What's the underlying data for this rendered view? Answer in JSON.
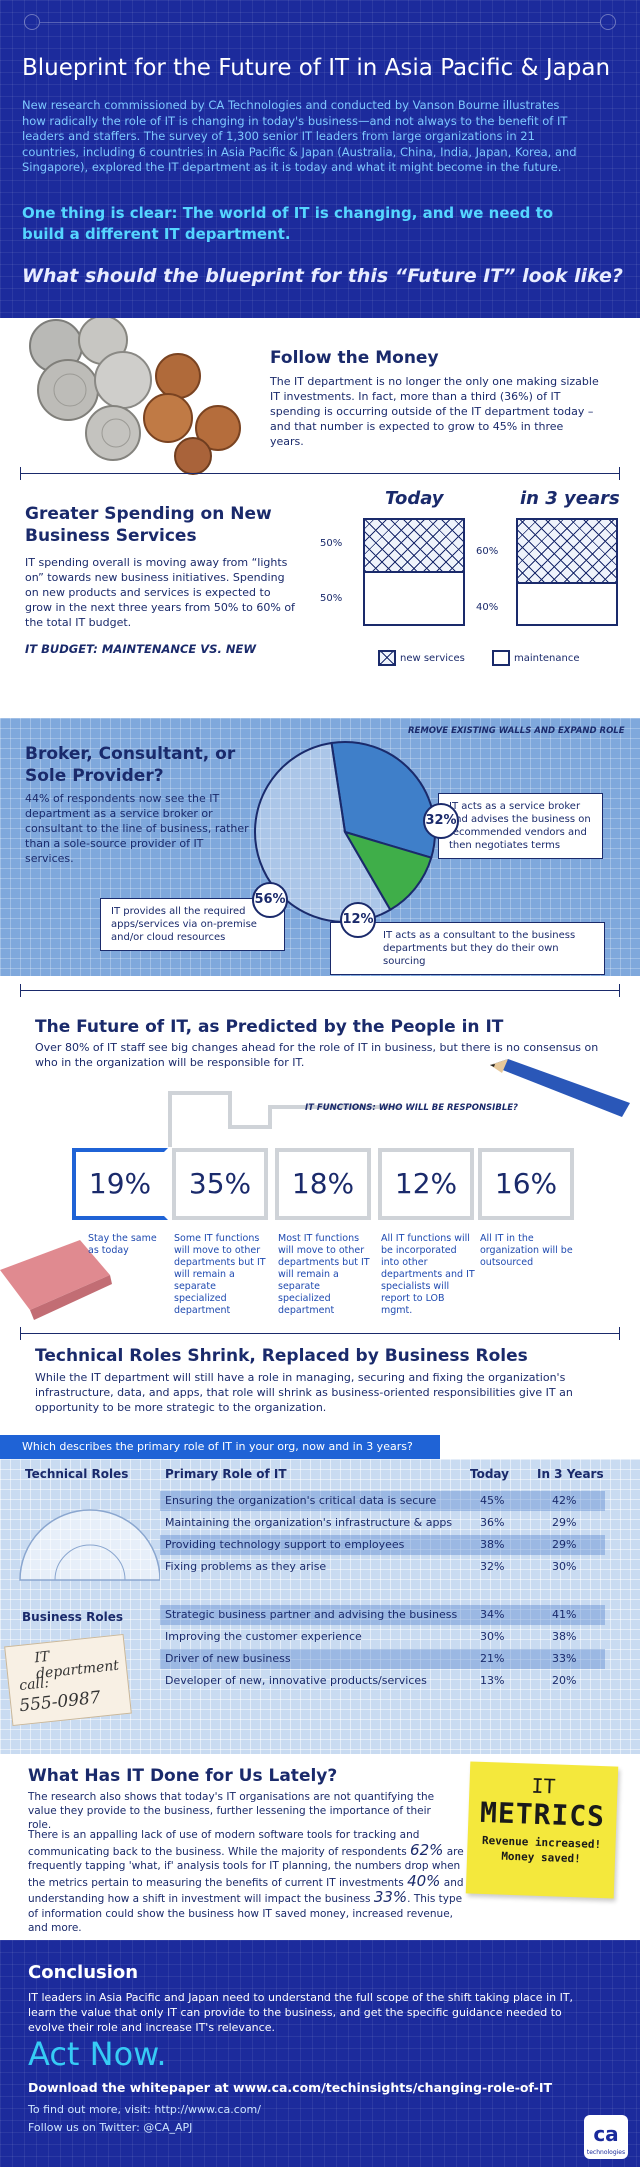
{
  "header": {
    "title": "Blueprint for the Future of IT in Asia Pacific & Japan",
    "intro": "New research commissioned by CA Technologies and conducted by Vanson Bourne illustrates how radically the role of IT is changing in today's business—and not always to the benefit of IT leaders and staffers. The survey of 1,300 senior IT leaders from large organizations in 21 countries, including 6 countries in Asia Pacific & Japan (Australia, China, India, Japan, Korea, and Singapore), explored the IT department as it is today and what it might become in the future.",
    "clear": "One thing is clear: The world of IT is changing, and we need to build a different IT department.",
    "question": "What should the blueprint for this “Future IT” look like?"
  },
  "money": {
    "title": "Follow the Money",
    "body": "The IT department is no longer the only one making sizable IT investments. In fact, more than a third (36%) of IT spending is occurring outside of the IT department today – and that number is expected to grow to 45% in three years."
  },
  "spending": {
    "title": "Greater Spending on New Business Services",
    "body": "IT spending overall is moving away from “lights on” towards new business initiatives. Spending on new products and services is expected to grow in the next three years from 50% to 60% of the total IT budget.",
    "budget_label": "IT BUDGET: MAINTENANCE VS. NEW",
    "today_label": "Today",
    "future_label": "in 3 years",
    "today_new": "50%",
    "today_maint": "50%",
    "future_new": "60%",
    "future_maint": "40%",
    "legend_new": "new services",
    "legend_maint": "maintenance"
  },
  "broker": {
    "title": "Broker, Consultant, or Sole Provider?",
    "body": "44% of respondents now see the IT department as a service broker or consultant to the line of business, rather than a sole-source provider of IT services.",
    "expand_label": "REMOVE EXISTING WALLS AND EXPAND ROLE",
    "pct_broker": "32%",
    "pct_provider": "56%",
    "pct_consultant": "12%",
    "text_broker": "IT acts as a service broker and advises the business on recommended vendors and then negotiates terms",
    "text_provider": "IT provides all the required apps/services via on-premise and/or cloud resources",
    "text_consultant": "IT acts as a consultant to the business departments but they do their own sourcing",
    "colors": {
      "broker": "#3f7fc9",
      "provider": "#ffffff",
      "consultant": "#3fae49"
    }
  },
  "chart_data": {
    "type": "pie",
    "categories": [
      "IT provides all the required apps/services via on-premise and/or cloud resources",
      "IT acts as a service broker and advises the business on recommended vendors and then negotiates terms",
      "IT acts as a consultant to the business departments but they do their own sourcing"
    ],
    "values": [
      56,
      32,
      12
    ]
  },
  "future": {
    "title": "The Future of IT, as Predicted by the People in IT",
    "body": "Over 80% of IT staff see big changes ahead for the role of IT in business, but there is no consensus on who in the organization will be responsible for IT.",
    "functions_label": "IT FUNCTIONS: WHO WILL BE RESPONSIBLE?",
    "items": [
      {
        "pct": "19%",
        "desc": "Stay the same as today"
      },
      {
        "pct": "35%",
        "desc": "Some IT functions will move to other departments but IT will remain a separate specialized department"
      },
      {
        "pct": "18%",
        "desc": "Most IT functions will move to other departments but IT will remain a separate specialized department"
      },
      {
        "pct": "12%",
        "desc": "All IT functions will be incorporated into other departments and IT specialists will report to LOB mgmt."
      },
      {
        "pct": "16%",
        "desc": "All IT in the organization will be outsourced"
      }
    ]
  },
  "roles": {
    "title": "Technical Roles Shrink, Replaced by Business Roles",
    "body": "While the IT department will still have a role in managing, securing and fixing the organization's infrastructure, data, and apps, that role will shrink as business-oriented responsibilities give IT an opportunity to be more strategic to the organization.",
    "question": "Which describes the primary role of IT in your org, now and in 3 years?",
    "col_role": "Primary Role of IT",
    "col_today": "Today",
    "col_future": "In 3 Years",
    "technical_label": "Technical Roles",
    "business_label": "Business Roles",
    "technical": [
      {
        "role": "Ensuring the organization's critical data is secure",
        "today": "45%",
        "future": "42%"
      },
      {
        "role": "Maintaining the organization's infrastructure & apps",
        "today": "36%",
        "future": "29%"
      },
      {
        "role": "Providing technology support to employees",
        "today": "38%",
        "future": "29%"
      },
      {
        "role": "Fixing problems as they arise",
        "today": "32%",
        "future": "30%"
      }
    ],
    "business": [
      {
        "role": "Strategic business partner and advising the business",
        "today": "34%",
        "future": "41%"
      },
      {
        "role": "Improving the customer experience",
        "today": "30%",
        "future": "38%"
      },
      {
        "role": "Driver of new business",
        "today": "21%",
        "future": "33%"
      },
      {
        "role": "Developer of new, innovative products/services",
        "today": "13%",
        "future": "20%"
      }
    ],
    "card_title": "IT department",
    "card_call": "call:",
    "card_number": "555-0987"
  },
  "metrics": {
    "title": "What Has IT Done for Us Lately?",
    "p1": "The research also shows that today's IT organisations are not quantifying the value they provide to the business, further lessening the importance of their role.",
    "p2_a": "There is an appalling lack of use of modern software tools for tracking and communicating back to the business. While the majority of respondents",
    "p2_n1": "62%",
    "p2_b": "are frequently tapping 'what, if' analysis tools for IT planning, the numbers drop when the metrics pertain to measuring the benefits of current IT investments",
    "p2_n2": "40%",
    "p2_c": "and understanding how a shift in investment will impact the business",
    "p2_n3": "33%",
    "p2_d": ". This type of information could show the business how IT saved money, increased revenue, and more.",
    "note_it": "IT",
    "note_metrics": "METRICS",
    "note_line1": "Revenue increased!",
    "note_line2": "Money saved!"
  },
  "conclusion": {
    "title": "Conclusion",
    "body": "IT leaders in Asia Pacific and Japan need to understand the full scope of the shift taking place in IT, learn the value that only IT can provide to the business, and get the specific guidance needed to evolve their role and increase IT's relevance.",
    "act": "Act Now.",
    "download": "Download the whitepaper at www.ca.com/techinsights/changing-role-of-IT",
    "more": "To find out more, visit: http://www.ca.com/",
    "twitter": "Follow us on Twitter: @CA_APJ",
    "logo_text": "ca",
    "logo_sub": "technologies"
  }
}
